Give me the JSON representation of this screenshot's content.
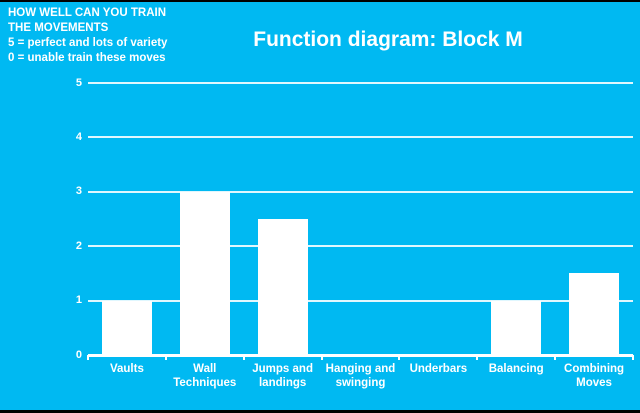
{
  "colors": {
    "background": "#00B9F2",
    "bar": "#FFFFFF",
    "gridline": "#FFFFFF",
    "text": "#FFFFFF",
    "edge_border": "#000000"
  },
  "header": {
    "note_lines": [
      "HOW WELL CAN YOU TRAIN",
      "THE MOVEMENTS",
      "5 = perfect and lots of variety",
      "0 = unable train these moves"
    ],
    "title": "Function diagram: Block M"
  },
  "chart_data": {
    "type": "bar",
    "title": "Function diagram: Block M",
    "categories": [
      "Vaults",
      "Wall Techniques",
      "Jumps and landings",
      "Hanging and swinging",
      "Underbars",
      "Balancing",
      "Combining Moves"
    ],
    "values": [
      1,
      3,
      2.5,
      0,
      0,
      1,
      1.5
    ],
    "xlabel": "",
    "ylabel": "",
    "ylim": [
      0,
      5
    ],
    "yticks": [
      0,
      1,
      2,
      3,
      4,
      5
    ],
    "grid": true,
    "legend_position": "none",
    "bar_color": "#FFFFFF"
  }
}
